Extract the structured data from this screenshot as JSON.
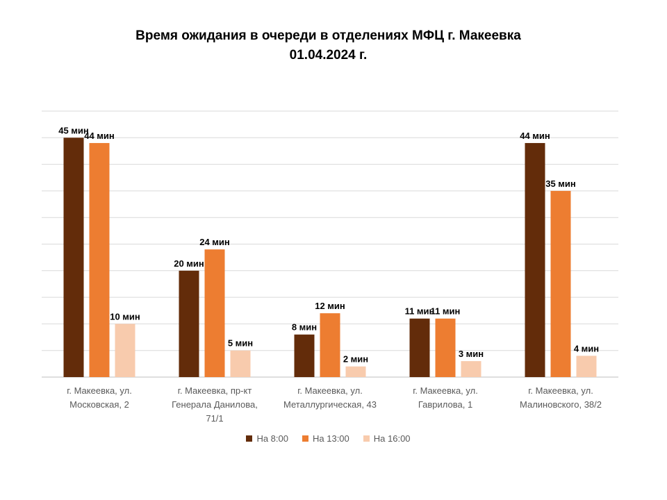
{
  "chart_data": {
    "type": "bar",
    "title": "Время ожидания в очереди в отделениях МФЦ г. Макеевка",
    "subtitle": "01.04.2024 г.",
    "categories": [
      "г. Макеевка, ул.\nМосковская, 2",
      "г. Макеевка, пр-кт\nГенерала Данилова,\n71/1",
      "г. Макеевка, ул.\nМеталлургическая, 43",
      "г. Макеевка, ул.\nГаврилова, 1",
      "г. Макеевка, ул.\nМалиновского, 38/2"
    ],
    "series": [
      {
        "name": "На 8:00",
        "color": "#632c0a",
        "values": [
          45,
          20,
          8,
          11,
          44
        ],
        "labels": [
          "45 мин",
          "20 мин",
          "8 мин",
          "11 мин",
          "44 мин"
        ]
      },
      {
        "name": "На 13:00",
        "color": "#ed7d31",
        "values": [
          44,
          24,
          12,
          11,
          35
        ],
        "labels": [
          "44 мин",
          "24 мин",
          "12 мин",
          "11 мин",
          "35 мин"
        ]
      },
      {
        "name": "На 16:00",
        "color": "#f8cbad",
        "values": [
          10,
          5,
          2,
          3,
          4
        ],
        "labels": [
          "10 мин",
          "5 мин",
          "2 мин",
          "3 мин",
          "4 мин"
        ]
      }
    ],
    "ylim": [
      0,
      50
    ],
    "grid": true,
    "legend": "bottom"
  }
}
